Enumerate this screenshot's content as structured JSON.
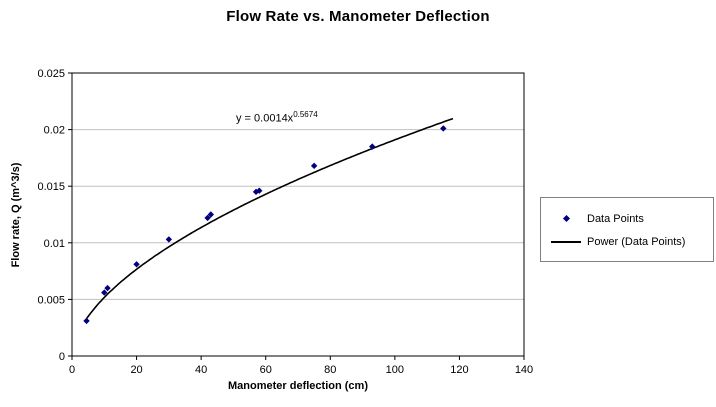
{
  "chart_data": {
    "type": "scatter",
    "title": "Flow Rate vs. Manometer Deflection",
    "xlabel": "Manometer deflection (cm)",
    "ylabel": "Flow rate, Q (m^3/s)",
    "xlim": [
      0,
      140
    ],
    "ylim": [
      0,
      0.025
    ],
    "xticks": [
      0,
      20,
      40,
      60,
      80,
      100,
      120,
      140
    ],
    "xticklabels": [
      "0",
      "20",
      "40",
      "60",
      "80",
      "100",
      "120",
      "140"
    ],
    "yticks": [
      0,
      0.005,
      0.01,
      0.015,
      0.02,
      0.025
    ],
    "yticklabels": [
      "0",
      "0.005",
      "0.01",
      "0.015",
      "0.02",
      "0.025"
    ],
    "grid": "horizontal-major",
    "gridline_color": "#c0c0c0",
    "plot_border_color": "#000000",
    "series": [
      {
        "name": "Data Points",
        "marker": "diamond",
        "color": "#000080",
        "points": [
          [
            4.5,
            0.0031
          ],
          [
            10,
            0.0056
          ],
          [
            11,
            0.006
          ],
          [
            20,
            0.0081
          ],
          [
            30,
            0.0103
          ],
          [
            42,
            0.0122
          ],
          [
            43,
            0.0125
          ],
          [
            57,
            0.0145
          ],
          [
            58,
            0.0146
          ],
          [
            75,
            0.0168
          ],
          [
            93,
            0.0185
          ],
          [
            115,
            0.0201
          ]
        ]
      }
    ],
    "trendline": {
      "type": "power",
      "coefficient": 0.0014,
      "exponent_value": 0.5674,
      "x_start": 4,
      "x_end": 118,
      "color": "#000000",
      "equation_base": "y = 0.0014x",
      "equation_exponent": "0.5674"
    },
    "legend": {
      "position": "right",
      "items": [
        {
          "label": "Data Points",
          "marker": "diamond",
          "color": "#000080"
        },
        {
          "label": "Power (Data Points)",
          "marker": "line",
          "color": "#000000"
        }
      ]
    }
  }
}
